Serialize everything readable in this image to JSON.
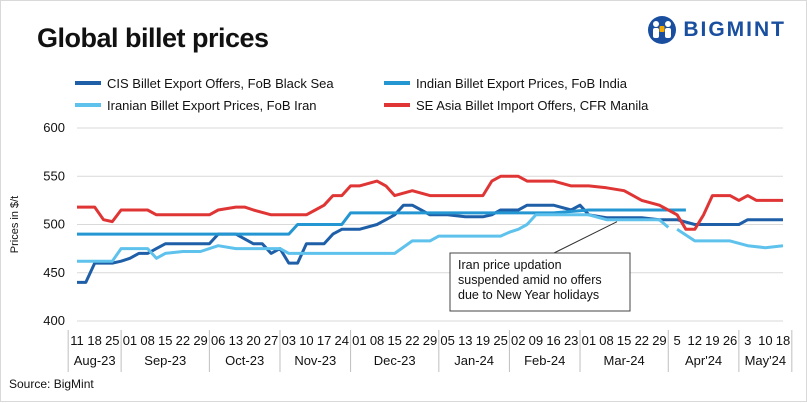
{
  "title": "Global billet prices",
  "brand": "BIGMINT",
  "source": "Source: BigMint",
  "chart_data": {
    "type": "line",
    "ylabel": "Prices in $/t",
    "ylim": [
      400,
      600
    ],
    "yticks": [
      400,
      450,
      500,
      550,
      600
    ],
    "grid": "horizontal",
    "legend_position": "top",
    "x_tick_labels": [
      "11",
      "18",
      "25",
      "01",
      "08",
      "15",
      "22",
      "29",
      "06",
      "13",
      "20",
      "27",
      "03",
      "10",
      "17",
      "24",
      "01",
      "08",
      "15",
      "22",
      "29",
      "05",
      "13",
      "19",
      "25",
      "02",
      "09",
      "16",
      "23",
      "01",
      "08",
      "15",
      "22",
      "29",
      "5",
      "12",
      "19",
      "26",
      "3",
      "10",
      "18"
    ],
    "month_groups": [
      {
        "label": "Aug-23",
        "start": 0,
        "end": 2
      },
      {
        "label": "Sep-23",
        "start": 3,
        "end": 7
      },
      {
        "label": "Oct-23",
        "start": 8,
        "end": 11
      },
      {
        "label": "Nov-23",
        "start": 12,
        "end": 15
      },
      {
        "label": "Dec-23",
        "start": 16,
        "end": 20
      },
      {
        "label": "Jan-24",
        "start": 21,
        "end": 24
      },
      {
        "label": "Feb-24",
        "start": 25,
        "end": 28
      },
      {
        "label": "Mar-24",
        "start": 29,
        "end": 33
      },
      {
        "label": "Apr'24",
        "start": 34,
        "end": 37
      },
      {
        "label": "May'24",
        "start": 38,
        "end": 40
      }
    ],
    "series": [
      {
        "name": "CIS Billet Export Offers, FoB Black Sea",
        "color": "#1f5fa8",
        "points": [
          [
            0,
            440
          ],
          [
            0.5,
            440
          ],
          [
            1,
            460
          ],
          [
            2,
            460
          ],
          [
            2.5,
            462
          ],
          [
            3,
            465
          ],
          [
            3.5,
            470
          ],
          [
            4,
            470
          ],
          [
            4.5,
            475
          ],
          [
            5,
            480
          ],
          [
            6,
            480
          ],
          [
            7,
            480
          ],
          [
            7.5,
            480
          ],
          [
            8,
            490
          ],
          [
            9,
            490
          ],
          [
            10,
            480
          ],
          [
            10.5,
            480
          ],
          [
            11,
            470
          ],
          [
            11.5,
            475
          ],
          [
            12,
            460
          ],
          [
            12.5,
            460
          ],
          [
            13,
            480
          ],
          [
            14,
            480
          ],
          [
            14.5,
            490
          ],
          [
            15,
            495
          ],
          [
            16,
            495
          ],
          [
            17,
            500
          ],
          [
            17.5,
            505
          ],
          [
            18,
            510
          ],
          [
            18.5,
            520
          ],
          [
            19,
            520
          ],
          [
            19.5,
            515
          ],
          [
            20,
            510
          ],
          [
            21,
            510
          ],
          [
            22,
            508
          ],
          [
            23,
            508
          ],
          [
            23.5,
            510
          ],
          [
            24,
            515
          ],
          [
            25,
            515
          ],
          [
            25.5,
            520
          ],
          [
            26,
            520
          ],
          [
            27,
            520
          ],
          [
            28,
            515
          ],
          [
            28.5,
            520
          ],
          [
            29,
            510
          ],
          [
            30,
            507
          ],
          [
            31,
            507
          ],
          [
            32,
            507
          ],
          [
            33,
            505
          ],
          [
            34,
            505
          ],
          [
            35,
            500
          ],
          [
            36,
            500
          ],
          [
            37,
            500
          ],
          [
            37.5,
            500
          ],
          [
            38,
            505
          ],
          [
            39,
            505
          ],
          [
            40,
            505
          ]
        ]
      },
      {
        "name": "Indian Billet Export Prices, FoB India",
        "color": "#2496d2",
        "points": [
          [
            0,
            490
          ],
          [
            2,
            490
          ],
          [
            4,
            490
          ],
          [
            6,
            490
          ],
          [
            8,
            490
          ],
          [
            10,
            490
          ],
          [
            11,
            490
          ],
          [
            12,
            490
          ],
          [
            12.5,
            500
          ],
          [
            14,
            500
          ],
          [
            15,
            500
          ],
          [
            15.5,
            512
          ],
          [
            17,
            512
          ],
          [
            19,
            512
          ],
          [
            21,
            512
          ],
          [
            23,
            512
          ],
          [
            25,
            512
          ],
          [
            27,
            512
          ],
          [
            29,
            515
          ],
          [
            31,
            515
          ],
          [
            33,
            515
          ],
          [
            34,
            515
          ],
          [
            34.5,
            515
          ]
        ]
      },
      {
        "name": "Iranian Billet Export Prices, FoB Iran",
        "color": "#5ec2ec",
        "points": [
          [
            0,
            462
          ],
          [
            1,
            462
          ],
          [
            2,
            462
          ],
          [
            2.5,
            475
          ],
          [
            4,
            475
          ],
          [
            4.5,
            465
          ],
          [
            5,
            470
          ],
          [
            6,
            472
          ],
          [
            7,
            472
          ],
          [
            8,
            478
          ],
          [
            9,
            475
          ],
          [
            10,
            475
          ],
          [
            11,
            475
          ],
          [
            11.5,
            475
          ],
          [
            12,
            470
          ],
          [
            13,
            470
          ],
          [
            14,
            470
          ],
          [
            15,
            470
          ],
          [
            16,
            470
          ],
          [
            17,
            470
          ],
          [
            18,
            470
          ],
          [
            19,
            483
          ],
          [
            20,
            483
          ],
          [
            20.5,
            488
          ],
          [
            22,
            488
          ],
          [
            23,
            488
          ],
          [
            24,
            488
          ],
          [
            24.5,
            492
          ],
          [
            25,
            495
          ],
          [
            25.5,
            500
          ],
          [
            26,
            510
          ],
          [
            27,
            510
          ],
          [
            28,
            510
          ],
          [
            29,
            510
          ],
          [
            30,
            505
          ],
          [
            31,
            505
          ],
          [
            32,
            505
          ],
          [
            33,
            505
          ],
          [
            33.5,
            497
          ]
        ],
        "continued_points": [
          [
            34,
            495
          ],
          [
            35,
            483
          ],
          [
            36,
            483
          ],
          [
            37,
            483
          ],
          [
            38,
            478
          ],
          [
            39,
            476
          ],
          [
            40,
            478
          ]
        ]
      },
      {
        "name": "SE Asia Billet Import Offers, CFR Manila",
        "color": "#e03535",
        "points": [
          [
            0,
            518
          ],
          [
            1,
            518
          ],
          [
            1.5,
            505
          ],
          [
            2,
            503
          ],
          [
            2.5,
            515
          ],
          [
            3,
            515
          ],
          [
            4,
            515
          ],
          [
            4.5,
            510
          ],
          [
            5,
            510
          ],
          [
            6,
            510
          ],
          [
            7,
            510
          ],
          [
            7.5,
            510
          ],
          [
            8,
            515
          ],
          [
            9,
            518
          ],
          [
            9.5,
            518
          ],
          [
            10,
            515
          ],
          [
            11,
            510
          ],
          [
            12,
            510
          ],
          [
            13,
            510
          ],
          [
            13.5,
            515
          ],
          [
            14,
            520
          ],
          [
            14.5,
            530
          ],
          [
            15,
            530
          ],
          [
            15.5,
            540
          ],
          [
            16,
            540
          ],
          [
            17,
            545
          ],
          [
            17.5,
            540
          ],
          [
            18,
            530
          ],
          [
            19,
            535
          ],
          [
            20,
            530
          ],
          [
            21,
            530
          ],
          [
            22,
            530
          ],
          [
            23,
            530
          ],
          [
            23.5,
            545
          ],
          [
            24,
            550
          ],
          [
            25,
            550
          ],
          [
            25.5,
            545
          ],
          [
            26,
            545
          ],
          [
            27,
            545
          ],
          [
            28,
            540
          ],
          [
            29,
            540
          ],
          [
            30,
            538
          ],
          [
            31,
            535
          ],
          [
            32,
            525
          ],
          [
            33,
            520
          ],
          [
            34,
            510
          ],
          [
            34.5,
            495
          ],
          [
            35,
            495
          ],
          [
            35.5,
            510
          ],
          [
            36,
            530
          ],
          [
            37,
            530
          ],
          [
            37.5,
            525
          ],
          [
            38,
            530
          ],
          [
            38.5,
            525
          ],
          [
            39,
            525
          ],
          [
            40,
            525
          ]
        ]
      }
    ],
    "annotation": [
      "Iran price updation",
      "suspended amid no offers",
      "due to New Year holidays"
    ]
  }
}
